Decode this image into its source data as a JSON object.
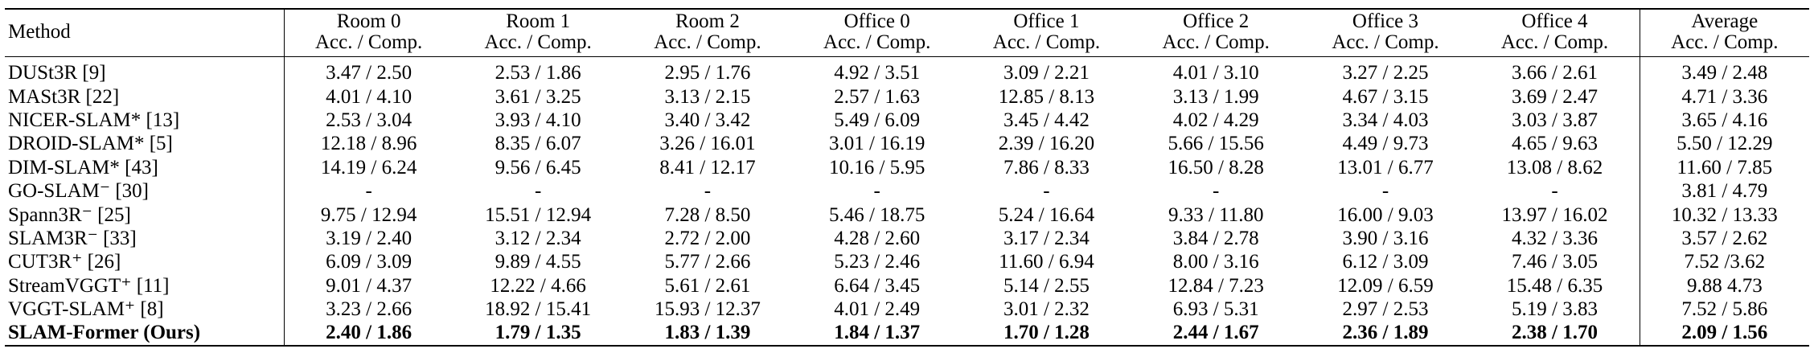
{
  "table": {
    "method_header": "Method",
    "columns": [
      {
        "name": "Room 0",
        "metric": "Acc. / Comp."
      },
      {
        "name": "Room 1",
        "metric": "Acc. / Comp."
      },
      {
        "name": "Room 2",
        "metric": "Acc. / Comp."
      },
      {
        "name": "Office 0",
        "metric": "Acc. / Comp."
      },
      {
        "name": "Office 1",
        "metric": "Acc. / Comp."
      },
      {
        "name": "Office 2",
        "metric": "Acc. / Comp."
      },
      {
        "name": "Office 3",
        "metric": "Acc. / Comp."
      },
      {
        "name": "Office 4",
        "metric": "Acc. / Comp."
      },
      {
        "name": "Average",
        "metric": "Acc. / Comp."
      }
    ],
    "rows": [
      {
        "method": "DUSt3R [9]",
        "cells": [
          "3.47 / 2.50",
          "2.53 / 1.86",
          "2.95 / 1.76",
          "4.92 / 3.51",
          "3.09 / 2.21",
          "4.01 / 3.10",
          "3.27 / 2.25",
          "3.66 / 2.61",
          "3.49 / 2.48"
        ]
      },
      {
        "method": "MASt3R [22]",
        "cells": [
          "4.01 / 4.10",
          "3.61 / 3.25",
          "3.13 / 2.15",
          "2.57 / 1.63",
          "12.85 / 8.13",
          "3.13 / 1.99",
          "4.67 / 3.15",
          "3.69 / 2.47",
          "4.71 / 3.36"
        ]
      },
      {
        "method": "NICER-SLAM* [13]",
        "cells": [
          "2.53 / 3.04",
          "3.93 / 4.10",
          "3.40 / 3.42",
          "5.49 / 6.09",
          "3.45 / 4.42",
          "4.02 / 4.29",
          "3.34 / 4.03",
          "3.03 / 3.87",
          "3.65 / 4.16"
        ]
      },
      {
        "method": "DROID-SLAM* [5]",
        "cells": [
          "12.18 / 8.96",
          "8.35 / 6.07",
          "3.26 / 16.01",
          "3.01 / 16.19",
          "2.39 / 16.20",
          "5.66 / 15.56",
          "4.49 / 9.73",
          "4.65 / 9.63",
          "5.50 / 12.29"
        ]
      },
      {
        "method": "DIM-SLAM* [43]",
        "cells": [
          "14.19 / 6.24",
          "9.56 / 6.45",
          "8.41 / 12.17",
          "10.16 / 5.95",
          "7.86 / 8.33",
          "16.50 / 8.28",
          "13.01 / 6.77",
          "13.08 / 8.62",
          "11.60 / 7.85"
        ]
      },
      {
        "method": "GO-SLAM⁻ [30]",
        "cells": [
          "-",
          "-",
          "-",
          "-",
          "-",
          "-",
          "-",
          "-",
          "3.81 / 4.79"
        ]
      },
      {
        "method": "Spann3R⁻ [25]",
        "cells": [
          "9.75 / 12.94",
          "15.51 / 12.94",
          "7.28 / 8.50",
          "5.46 / 18.75",
          "5.24 / 16.64",
          "9.33 / 11.80",
          "16.00 / 9.03",
          "13.97 / 16.02",
          "10.32 / 13.33"
        ]
      },
      {
        "method": "SLAM3R⁻ [33]",
        "cells": [
          "3.19 / 2.40",
          "3.12 / 2.34",
          "2.72 / 2.00",
          "4.28 / 2.60",
          "3.17 / 2.34",
          "3.84 / 2.78",
          "3.90 / 3.16",
          "4.32 / 3.36",
          "3.57 / 2.62"
        ]
      },
      {
        "method": "CUT3R⁺ [26]",
        "cells": [
          "6.09 / 3.09",
          "9.89 / 4.55",
          "5.77 / 2.66",
          "5.23 / 2.46",
          "11.60 / 6.94",
          "8.00 / 3.16",
          "6.12 / 3.09",
          "7.46 / 3.05",
          "7.52 /3.62"
        ]
      },
      {
        "method": "StreamVGGT⁺ [11]",
        "cells": [
          "9.01 / 4.37",
          "12.22 / 4.66",
          "5.61 / 2.61",
          "6.64 / 3.45",
          "5.14 / 2.55",
          "12.84 / 7.23",
          "12.09 / 6.59",
          "15.48 / 6.35",
          "9.88 4.73"
        ]
      },
      {
        "method": "VGGT-SLAM⁺ [8]",
        "cells": [
          "3.23 / 2.66",
          "18.92 / 15.41",
          "15.93 / 12.37",
          "4.01 / 2.49",
          "3.01 / 2.32",
          "6.93 / 5.31",
          "2.97 / 2.53",
          "5.19 / 3.83",
          "7.52 / 5.86"
        ]
      },
      {
        "method": "SLAM-Former (Ours)",
        "cells": [
          "2.40 / 1.86",
          "1.79 / 1.35",
          "1.83 / 1.39",
          "1.84 / 1.37",
          "1.70 / 1.28",
          "2.44 / 1.67",
          "2.36 / 1.89",
          "2.38 / 1.70",
          "2.09 / 1.56"
        ]
      }
    ]
  }
}
